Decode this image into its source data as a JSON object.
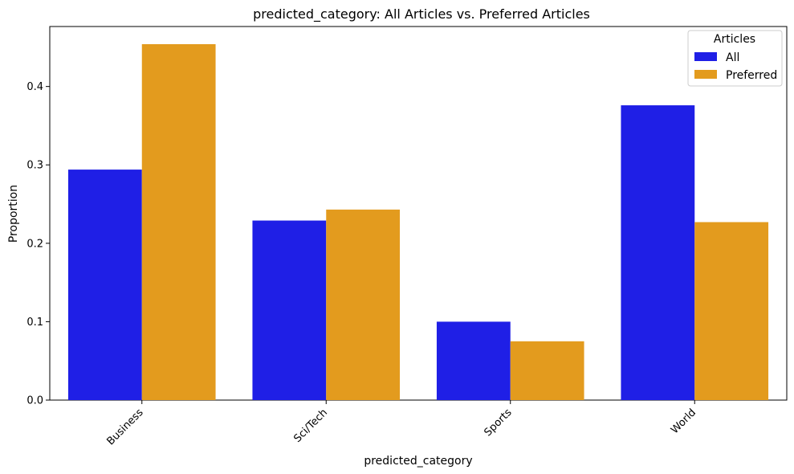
{
  "chart_data": {
    "type": "bar",
    "title": "predicted_category: All Articles vs. Preferred Articles",
    "xlabel": "predicted_category",
    "ylabel": "Proportion",
    "categories": [
      "Business",
      "Sci/Tech",
      "Sports",
      "World"
    ],
    "series": [
      {
        "name": "All",
        "color": "#1f1fe6",
        "values": [
          0.294,
          0.229,
          0.1,
          0.376
        ]
      },
      {
        "name": "Preferred",
        "color": "#e39b1e",
        "values": [
          0.454,
          0.243,
          0.075,
          0.227
        ]
      }
    ],
    "ylim": [
      0,
      0.4765
    ],
    "yticks": [
      0.0,
      0.1,
      0.2,
      0.3,
      0.4
    ],
    "ytick_labels": [
      "0.0",
      "0.1",
      "0.2",
      "0.3",
      "0.4"
    ],
    "legend": {
      "title": "Articles",
      "placement": "top-right"
    },
    "grid": false
  }
}
